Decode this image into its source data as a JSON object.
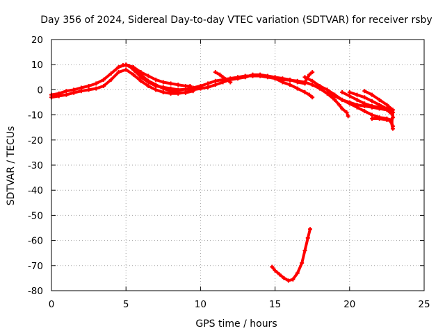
{
  "chart_data": {
    "type": "scatter",
    "title": "Day 356 of 2024, Sidereal Day-to-day VTEC variation (SDTVAR) for receiver rsby",
    "xlabel": "GPS time / hours",
    "ylabel": "SDTVAR / TECUs",
    "xlim": [
      0,
      25
    ],
    "ylim": [
      -80,
      20
    ],
    "xticks": [
      0,
      5,
      10,
      15,
      20,
      25
    ],
    "yticks": [
      20,
      10,
      0,
      -10,
      -20,
      -30,
      -40,
      -50,
      -60,
      -70,
      -80
    ],
    "grid": true,
    "series_color": "#ff0000",
    "series": [
      {
        "name": "track-1",
        "points": [
          [
            0,
            -2
          ],
          [
            0.5,
            -1.5
          ],
          [
            1,
            -0.5
          ],
          [
            1.5,
            0
          ],
          [
            2,
            0.8
          ],
          [
            2.5,
            1.5
          ],
          [
            3,
            2.5
          ],
          [
            3.5,
            4
          ],
          [
            4,
            6.5
          ],
          [
            4.5,
            9
          ],
          [
            4.8,
            9.8
          ],
          [
            5.2,
            9.5
          ],
          [
            5.6,
            7.5
          ],
          [
            6,
            5
          ],
          [
            6.5,
            3
          ],
          [
            7,
            1.5
          ],
          [
            7.5,
            1
          ],
          [
            8,
            0.5
          ],
          [
            8.5,
            0
          ],
          [
            9,
            0.2
          ],
          [
            9.5,
            0.8
          ],
          [
            10,
            1.5
          ],
          [
            10.5,
            2.5
          ],
          [
            11,
            3.5
          ],
          [
            11.5,
            4
          ],
          [
            12,
            4.5
          ],
          [
            12.5,
            5
          ],
          [
            13,
            5.5
          ],
          [
            13.5,
            5.5
          ],
          [
            14,
            5.5
          ],
          [
            14.5,
            5
          ],
          [
            15,
            4.5
          ],
          [
            15.5,
            4
          ],
          [
            16,
            3.8
          ],
          [
            16.5,
            3.5
          ],
          [
            17,
            3
          ]
        ]
      },
      {
        "name": "track-2",
        "points": [
          [
            0,
            -3
          ],
          [
            0.5,
            -2.5
          ],
          [
            1,
            -2
          ],
          [
            1.5,
            -1.2
          ],
          [
            2,
            -0.5
          ],
          [
            2.5,
            0
          ],
          [
            3,
            0.5
          ],
          [
            3.5,
            1.5
          ],
          [
            4,
            4
          ],
          [
            4.5,
            7
          ],
          [
            5,
            8
          ],
          [
            5.5,
            6
          ],
          [
            6,
            3.5
          ],
          [
            6.5,
            1.5
          ],
          [
            7,
            0
          ],
          [
            7.5,
            -1
          ],
          [
            8,
            -1.5
          ],
          [
            8.5,
            -1.5
          ],
          [
            9,
            -1
          ],
          [
            9.5,
            0
          ],
          [
            10,
            0.5
          ],
          [
            10.5,
            1
          ],
          [
            11,
            2
          ],
          [
            11.5,
            3
          ],
          [
            12,
            4
          ],
          [
            12.5,
            4.5
          ],
          [
            13,
            5
          ],
          [
            13.5,
            6
          ],
          [
            14,
            6
          ],
          [
            14.5,
            5.5
          ],
          [
            15,
            5
          ],
          [
            15.5,
            4.5
          ],
          [
            16,
            4
          ],
          [
            16.5,
            3
          ],
          [
            17,
            2.5
          ]
        ]
      },
      {
        "name": "track-3",
        "points": [
          [
            4.5,
            9
          ],
          [
            5,
            10
          ],
          [
            5.5,
            9
          ],
          [
            6,
            7
          ],
          [
            6.5,
            5.5
          ],
          [
            7,
            4
          ],
          [
            7.5,
            3
          ],
          [
            8,
            2.5
          ],
          [
            8.5,
            2
          ],
          [
            9,
            1.5
          ],
          [
            9.3,
            1.5
          ]
        ]
      },
      {
        "name": "track-4",
        "points": [
          [
            5.5,
            8
          ],
          [
            6,
            6
          ],
          [
            6.5,
            3.5
          ],
          [
            7,
            2
          ],
          [
            7.5,
            0.5
          ],
          [
            8,
            -0.5
          ],
          [
            8.5,
            -1
          ],
          [
            9,
            -1.2
          ],
          [
            9.5,
            -0.5
          ]
        ]
      },
      {
        "name": "track-5",
        "points": [
          [
            11,
            7
          ],
          [
            11.3,
            6
          ],
          [
            11.5,
            5
          ],
          [
            11.8,
            4
          ],
          [
            12,
            3
          ]
        ]
      },
      {
        "name": "track-6",
        "points": [
          [
            17,
            3
          ],
          [
            17.3,
            6
          ],
          [
            17.5,
            7
          ]
        ]
      },
      {
        "name": "track-7",
        "points": [
          [
            15,
            4.5
          ],
          [
            15.5,
            3
          ],
          [
            16,
            2
          ],
          [
            16.5,
            0.5
          ],
          [
            17,
            -1
          ],
          [
            17.3,
            -2
          ],
          [
            17.5,
            -3
          ]
        ]
      },
      {
        "name": "track-8",
        "points": [
          [
            17,
            5
          ],
          [
            17.5,
            3.5
          ],
          [
            18,
            1.5
          ],
          [
            18.5,
            0
          ],
          [
            19,
            -2
          ],
          [
            19.5,
            -4
          ],
          [
            20,
            -5.5
          ],
          [
            20.5,
            -7
          ],
          [
            21,
            -8.5
          ],
          [
            21.5,
            -10
          ],
          [
            22,
            -11
          ],
          [
            22.5,
            -11.5
          ],
          [
            22.8,
            -12
          ]
        ]
      },
      {
        "name": "track-9",
        "points": [
          [
            17,
            3
          ],
          [
            17.5,
            2
          ],
          [
            18,
            0.5
          ],
          [
            18.5,
            -1.5
          ],
          [
            19,
            -4
          ],
          [
            19.3,
            -6
          ],
          [
            19.5,
            -7.5
          ],
          [
            19.8,
            -9
          ],
          [
            19.9,
            -10.5
          ]
        ]
      },
      {
        "name": "track-10",
        "points": [
          [
            18.5,
            -1
          ],
          [
            19,
            -2.5
          ],
          [
            19.5,
            -4
          ],
          [
            20,
            -5
          ],
          [
            20.5,
            -6
          ],
          [
            21,
            -6.5
          ],
          [
            21.5,
            -7
          ],
          [
            22,
            -7.5
          ],
          [
            22.5,
            -8
          ],
          [
            22.8,
            -9.5
          ]
        ]
      },
      {
        "name": "track-11",
        "points": [
          [
            19.5,
            -1
          ],
          [
            20,
            -2.5
          ],
          [
            20.5,
            -4
          ],
          [
            21,
            -5.5
          ],
          [
            21.5,
            -6.5
          ],
          [
            22,
            -7
          ],
          [
            22.5,
            -7.5
          ],
          [
            22.8,
            -8
          ]
        ]
      },
      {
        "name": "track-12",
        "points": [
          [
            20,
            -1
          ],
          [
            20.5,
            -2
          ],
          [
            21,
            -3
          ],
          [
            21.5,
            -4.5
          ],
          [
            22,
            -6
          ],
          [
            22.5,
            -7.5
          ],
          [
            22.9,
            -9
          ]
        ]
      },
      {
        "name": "track-13",
        "points": [
          [
            21,
            -0.5
          ],
          [
            21.5,
            -2
          ],
          [
            22,
            -4
          ],
          [
            22.5,
            -6
          ],
          [
            22.9,
            -8
          ],
          [
            22.9,
            -11
          ],
          [
            22.8,
            -13
          ],
          [
            22.9,
            -15.5
          ]
        ]
      },
      {
        "name": "track-14",
        "points": [
          [
            21.5,
            -11.5
          ],
          [
            22,
            -11.5
          ],
          [
            22.5,
            -12
          ],
          [
            22.8,
            -12.5
          ],
          [
            22.9,
            -14.5
          ]
        ]
      },
      {
        "name": "track-15",
        "points": [
          [
            14.8,
            -70.5
          ],
          [
            15,
            -72
          ],
          [
            15.3,
            -73.5
          ],
          [
            15.6,
            -75
          ],
          [
            15.9,
            -76
          ],
          [
            16.2,
            -75.5
          ],
          [
            16.5,
            -73
          ],
          [
            16.8,
            -69
          ],
          [
            17,
            -64
          ],
          [
            17.2,
            -59
          ],
          [
            17.35,
            -55.5
          ]
        ]
      }
    ]
  }
}
